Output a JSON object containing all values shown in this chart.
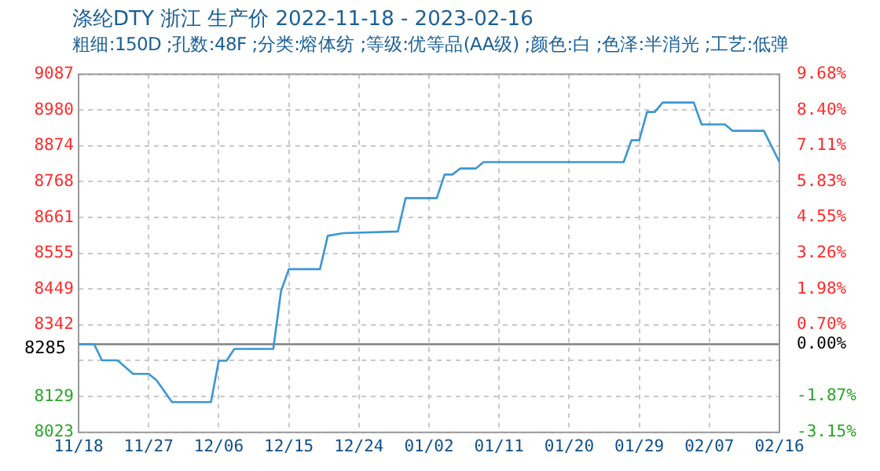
{
  "chart_data": {
    "type": "line",
    "title": "涤纶DTY 浙江 生产价 2022-11-18 - 2023-02-16",
    "subtitle": "粗细:150D ;孔数:48F ;分类:熔体纺 ;等级:优等品(AA级) ;颜色:白 ;色泽:半消光 ;工艺:低弹",
    "x": [
      "2022-11-18",
      "2022-11-20",
      "2022-11-21",
      "2022-11-23",
      "2022-11-25",
      "2022-11-27",
      "2022-11-28",
      "2022-11-30",
      "2022-12-05",
      "2022-12-06",
      "2022-12-07",
      "2022-12-08",
      "2022-12-13",
      "2022-12-14",
      "2022-12-15",
      "2022-12-19",
      "2022-12-20",
      "2022-12-22",
      "2022-12-29",
      "2022-12-30",
      "2023-01-03",
      "2023-01-04",
      "2023-01-05",
      "2023-01-06",
      "2023-01-08",
      "2023-01-09",
      "2023-01-27",
      "2023-01-28",
      "2023-01-29",
      "2023-01-30",
      "2023-01-31",
      "2023-02-01",
      "2023-02-05",
      "2023-02-06",
      "2023-02-09",
      "2023-02-10",
      "2023-02-14",
      "2023-02-16"
    ],
    "series": [
      {
        "color": "#3b97d3",
        "values": [
          8285,
          8285,
          8237,
          8237,
          8197,
          8197,
          8178,
          8113,
          8113,
          8236,
          8236,
          8271,
          8271,
          8443,
          8508,
          8508,
          8607,
          8615,
          8620,
          8719,
          8719,
          8789,
          8789,
          8807,
          8807,
          8826,
          8826,
          8891,
          8891,
          8975,
          8975,
          9003,
          9003,
          8938,
          8938,
          8919,
          8919,
          8826
        ]
      }
    ],
    "xlim": [
      "2022-11-18",
      "2023-02-16"
    ],
    "xticks": [
      {
        "value": "2022-11-18",
        "label": "11/18"
      },
      {
        "value": "2022-11-27",
        "label": "11/27"
      },
      {
        "value": "2022-12-06",
        "label": "12/06"
      },
      {
        "value": "2022-12-15",
        "label": "12/15"
      },
      {
        "value": "2022-12-24",
        "label": "12/24"
      },
      {
        "value": "2023-01-02",
        "label": "01/02"
      },
      {
        "value": "2023-01-11",
        "label": "01/11"
      },
      {
        "value": "2023-01-20",
        "label": "01/20"
      },
      {
        "value": "2023-01-29",
        "label": "01/29"
      },
      {
        "value": "2023-02-07",
        "label": "02/07"
      },
      {
        "value": "2023-02-16",
        "label": "02/16"
      }
    ],
    "ylim": [
      8023,
      9087
    ],
    "yticks": [
      8023,
      8129,
      {
        "value": 8236,
        "label": null
      },
      8342,
      8449,
      8555,
      8661,
      8768,
      8874,
      8980,
      9087
    ],
    "y2lim": [
      -3.16,
      9.68
    ],
    "y2ticks": [
      {
        "value": -3.15,
        "label": "-3.15%"
      },
      {
        "value": -1.87,
        "label": "-1.87%"
      },
      {
        "value": 0,
        "label": "0.00%"
      },
      {
        "value": 0.7,
        "label": "0.70%"
      },
      {
        "value": 1.98,
        "label": "1.98%"
      },
      {
        "value": 3.26,
        "label": "3.26%"
      },
      {
        "value": 4.55,
        "label": "4.55%"
      },
      {
        "value": 5.83,
        "label": "5.83%"
      },
      {
        "value": 7.11,
        "label": "7.11%"
      },
      {
        "value": 8.4,
        "label": "8.40%"
      },
      {
        "value": 9.68,
        "label": "9.68%"
      }
    ],
    "ref_lines": [
      {
        "axis": "y",
        "value": 8285,
        "label": "8285",
        "color": "#808080"
      }
    ],
    "grid": true,
    "legend": false,
    "marker": "none",
    "line_style": "solid"
  }
}
